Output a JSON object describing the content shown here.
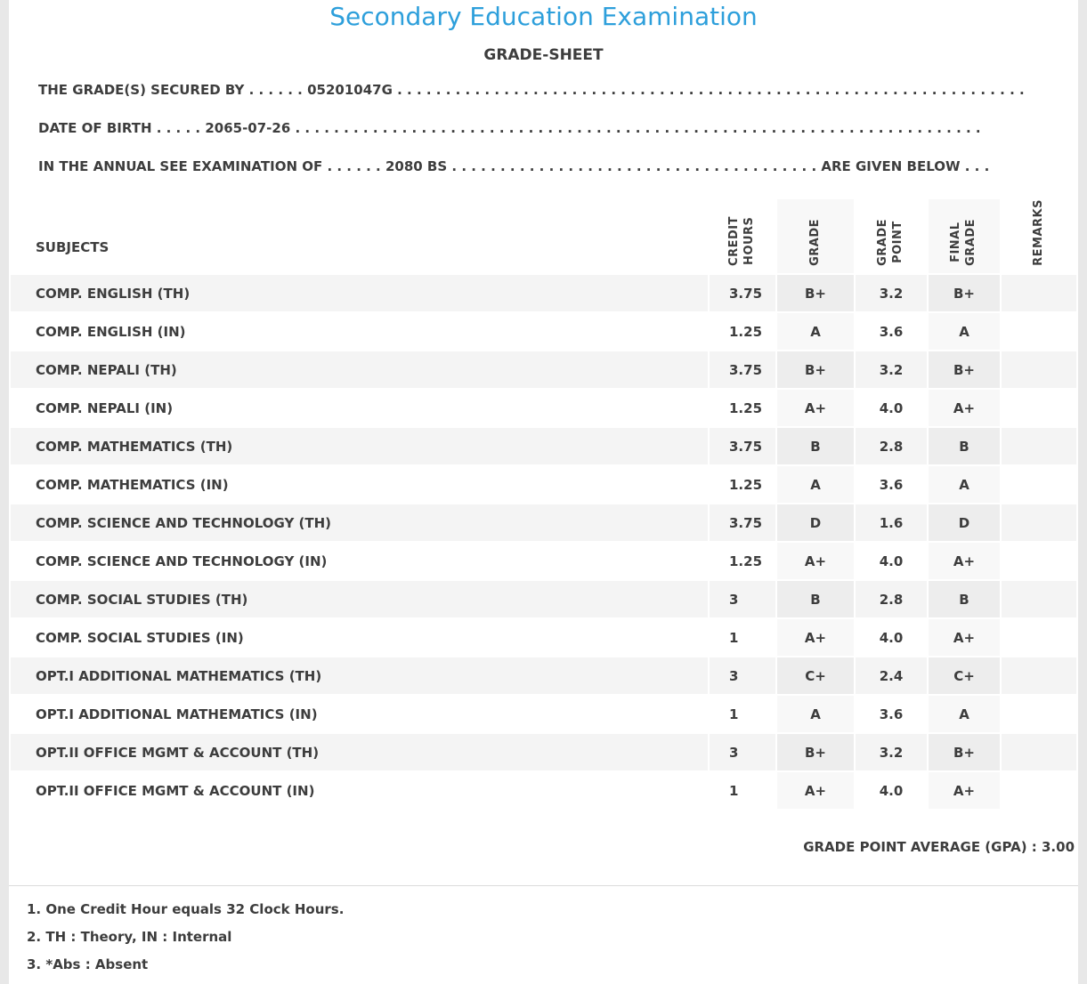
{
  "header": {
    "title": "Secondary Education Examination",
    "subtitle": "GRADE-SHEET"
  },
  "info_lines": [
    "THE GRADE(S) SECURED BY . . . . . . 05201047G . . . . . . . . . . . . . . . . . . . . . . . . . . . . . . . . . . . . . . . . . . . . . . . . . . . . . . . . . . . . . . . . .",
    "DATE OF BIRTH . . . . . 2065-07-26 . . . . . . . . . . . . . . . . . . . . . . . . . . . . . . . . . . . . . . . . . . . . . . . . . . . . . . . . . . . . . . . . . . . . . . .",
    "IN THE ANNUAL SEE EXAMINATION OF . . . . . . 2080 BS . . . . . . . . . . . . . . . . . . . . . . . . . . . . . . . . . . . . . . ARE GIVEN BELOW . . ."
  ],
  "table": {
    "columns": [
      "SUBJECTS",
      "CREDIT\nHOURS",
      "GRADE",
      "GRADE\nPOINT",
      "FINAL\nGRADE",
      "REMARKS"
    ],
    "rows": [
      {
        "subject": "COMP. ENGLISH (TH)",
        "credit": "3.75",
        "grade": "B+",
        "point": "3.2",
        "final": "B+",
        "remarks": ""
      },
      {
        "subject": "COMP. ENGLISH (IN)",
        "credit": "1.25",
        "grade": "A",
        "point": "3.6",
        "final": "A",
        "remarks": ""
      },
      {
        "subject": "COMP. NEPALI (TH)",
        "credit": "3.75",
        "grade": "B+",
        "point": "3.2",
        "final": "B+",
        "remarks": ""
      },
      {
        "subject": "COMP. NEPALI (IN)",
        "credit": "1.25",
        "grade": "A+",
        "point": "4.0",
        "final": "A+",
        "remarks": ""
      },
      {
        "subject": "COMP. MATHEMATICS (TH)",
        "credit": "3.75",
        "grade": "B",
        "point": "2.8",
        "final": "B",
        "remarks": ""
      },
      {
        "subject": "COMP. MATHEMATICS (IN)",
        "credit": "1.25",
        "grade": "A",
        "point": "3.6",
        "final": "A",
        "remarks": ""
      },
      {
        "subject": "COMP. SCIENCE AND TECHNOLOGY (TH)",
        "credit": "3.75",
        "grade": "D",
        "point": "1.6",
        "final": "D",
        "remarks": ""
      },
      {
        "subject": "COMP. SCIENCE AND TECHNOLOGY (IN)",
        "credit": "1.25",
        "grade": "A+",
        "point": "4.0",
        "final": "A+",
        "remarks": ""
      },
      {
        "subject": "COMP. SOCIAL STUDIES (TH)",
        "credit": "3",
        "grade": "B",
        "point": "2.8",
        "final": "B",
        "remarks": ""
      },
      {
        "subject": "COMP. SOCIAL STUDIES (IN)",
        "credit": "1",
        "grade": "A+",
        "point": "4.0",
        "final": "A+",
        "remarks": ""
      },
      {
        "subject": "OPT.I ADDITIONAL MATHEMATICS (TH)",
        "credit": "3",
        "grade": "C+",
        "point": "2.4",
        "final": "C+",
        "remarks": ""
      },
      {
        "subject": "OPT.I ADDITIONAL MATHEMATICS (IN)",
        "credit": "1",
        "grade": "A",
        "point": "3.6",
        "final": "A",
        "remarks": ""
      },
      {
        "subject": "OPT.II OFFICE MGMT & ACCOUNT (TH)",
        "credit": "3",
        "grade": "B+",
        "point": "3.2",
        "final": "B+",
        "remarks": ""
      },
      {
        "subject": "OPT.II OFFICE MGMT & ACCOUNT (IN)",
        "credit": "1",
        "grade": "A+",
        "point": "4.0",
        "final": "A+",
        "remarks": ""
      }
    ]
  },
  "summary": {
    "gpa_line": "GRADE POINT AVERAGE (GPA) : 3.00"
  },
  "notes": [
    "1. One Credit Hour equals 32 Clock Hours.",
    "2. TH : Theory, IN : Internal",
    "3. *Abs : Absent"
  ],
  "colors": {
    "title_blue": "#2d9fdb",
    "text": "#3d3d3d",
    "row_stripe": "#f4f4f4",
    "page_edge": "#e8e8e8"
  }
}
